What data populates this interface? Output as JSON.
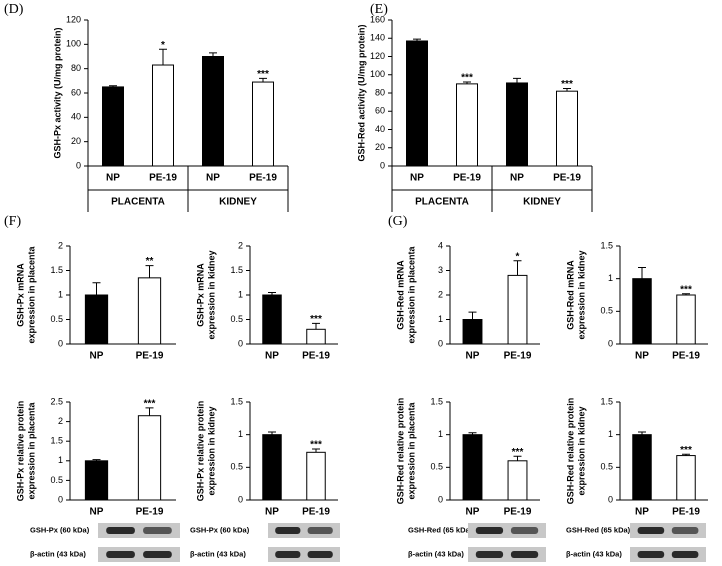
{
  "chart_data": [
    {
      "type": "bar",
      "panel": "(D)",
      "ylabel": [
        "GSH-Px activity (U/mg protein)"
      ],
      "categories": [
        "NP",
        "PE-19",
        "NP",
        "PE-19"
      ],
      "groups": [
        "PLACENTA",
        "KIDNEY"
      ],
      "values": [
        65,
        83,
        90,
        69
      ],
      "errors": [
        1,
        13,
        3,
        3
      ],
      "colors": [
        "#000000",
        "#ffffff",
        "#000000",
        "#ffffff"
      ],
      "annotations": [
        {
          "category": 1,
          "text": "*"
        },
        {
          "category": 3,
          "text": "***"
        }
      ],
      "ylim": [
        0,
        120
      ],
      "yticks": [
        0,
        20,
        40,
        60,
        80,
        100,
        120
      ]
    },
    {
      "type": "bar",
      "panel": "(E)",
      "ylabel": [
        "GSH-Red activity (U/mg protein)"
      ],
      "categories": [
        "NP",
        "PE-19",
        "NP",
        "PE-19"
      ],
      "groups": [
        "PLACENTA",
        "KIDNEY"
      ],
      "values": [
        137,
        90,
        91,
        82
      ],
      "errors": [
        2,
        2,
        5,
        3
      ],
      "colors": [
        "#000000",
        "#ffffff",
        "#000000",
        "#ffffff"
      ],
      "annotations": [
        {
          "category": 1,
          "text": "***"
        },
        {
          "category": 3,
          "text": "***"
        }
      ],
      "ylim": [
        0,
        160
      ],
      "yticks": [
        0,
        20,
        40,
        60,
        80,
        100,
        120,
        140,
        160
      ]
    },
    {
      "type": "bar",
      "panel": "(F)",
      "ylabel": [
        "GSH-Px mRNA",
        "expression in placenta"
      ],
      "categories": [
        "NP",
        "PE-19"
      ],
      "values": [
        1,
        1.35
      ],
      "errors": [
        0.25,
        0.25
      ],
      "colors": [
        "#000000",
        "#ffffff"
      ],
      "annotations": [
        {
          "category": 1,
          "text": "**"
        }
      ],
      "ylim": [
        0,
        2
      ],
      "yticks": [
        0,
        0.5,
        1,
        1.5,
        2
      ]
    },
    {
      "type": "bar",
      "ylabel": [
        "GSH-Px mRNA",
        "expression in kidney"
      ],
      "categories": [
        "NP",
        "PE-19"
      ],
      "values": [
        1,
        0.3
      ],
      "errors": [
        0.05,
        0.12
      ],
      "colors": [
        "#000000",
        "#ffffff"
      ],
      "annotations": [
        {
          "category": 1,
          "text": "***"
        }
      ],
      "ylim": [
        0,
        2
      ],
      "yticks": [
        0,
        0.5,
        1,
        1.5,
        2
      ]
    },
    {
      "type": "bar",
      "ylabel": [
        "GSH-Px relative protein",
        "expression in placenta"
      ],
      "categories": [
        "NP",
        "PE-19"
      ],
      "values": [
        1,
        2.15
      ],
      "errors": [
        0.03,
        0.2
      ],
      "colors": [
        "#000000",
        "#ffffff"
      ],
      "annotations": [
        {
          "category": 1,
          "text": "***"
        }
      ],
      "ylim": [
        0,
        2.5
      ],
      "yticks": [
        0,
        0.5,
        1,
        1.5,
        2,
        2.5
      ],
      "blot_labels": [
        "GSH-Px (60 kDa)",
        "β-actin (43 kDa)"
      ]
    },
    {
      "type": "bar",
      "ylabel": [
        "GSH-Px relative protein",
        "expression in kidney"
      ],
      "categories": [
        "NP",
        "PE-19"
      ],
      "values": [
        1,
        0.73
      ],
      "errors": [
        0.04,
        0.05
      ],
      "colors": [
        "#000000",
        "#ffffff"
      ],
      "annotations": [
        {
          "category": 1,
          "text": "***"
        }
      ],
      "ylim": [
        0,
        1.5
      ],
      "yticks": [
        0,
        0.5,
        1,
        1.5
      ],
      "blot_labels": [
        "GSH-Px (60 kDa)",
        "β-actin (43 kDa)"
      ]
    },
    {
      "type": "bar",
      "panel": "(G)",
      "ylabel": [
        "GSH-Red mRNA",
        "expression in placenta"
      ],
      "categories": [
        "NP",
        "PE-19"
      ],
      "values": [
        1,
        2.8
      ],
      "errors": [
        0.3,
        0.6
      ],
      "colors": [
        "#000000",
        "#ffffff"
      ],
      "annotations": [
        {
          "category": 1,
          "text": "*"
        }
      ],
      "ylim": [
        0,
        4
      ],
      "yticks": [
        0,
        1,
        2,
        3,
        4
      ]
    },
    {
      "type": "bar",
      "ylabel": [
        "GSH-Red mRNA",
        "expression in kidney"
      ],
      "categories": [
        "NP",
        "PE-19"
      ],
      "values": [
        1,
        0.75
      ],
      "errors": [
        0.17,
        0.02
      ],
      "colors": [
        "#000000",
        "#ffffff"
      ],
      "annotations": [
        {
          "category": 1,
          "text": "***"
        }
      ],
      "ylim": [
        0,
        1.5
      ],
      "yticks": [
        0,
        0.5,
        1,
        1.5
      ]
    },
    {
      "type": "bar",
      "ylabel": [
        "GSH-Red relative protein",
        "expression in placenta"
      ],
      "categories": [
        "NP",
        "PE-19"
      ],
      "values": [
        1,
        0.6
      ],
      "errors": [
        0.03,
        0.07
      ],
      "colors": [
        "#000000",
        "#ffffff"
      ],
      "annotations": [
        {
          "category": 1,
          "text": "***"
        }
      ],
      "ylim": [
        0,
        1.5
      ],
      "yticks": [
        0,
        0.5,
        1,
        1.5
      ],
      "blot_labels": [
        "GSH-Red (65 kDa)",
        "β-actin (43 kDa)"
      ]
    },
    {
      "type": "bar",
      "ylabel": [
        "GSH-Red relative protein",
        "expression in kidney"
      ],
      "categories": [
        "NP",
        "PE-19"
      ],
      "values": [
        1,
        0.68
      ],
      "errors": [
        0.04,
        0.02
      ],
      "colors": [
        "#000000",
        "#ffffff"
      ],
      "annotations": [
        {
          "category": 1,
          "text": "***"
        }
      ],
      "ylim": [
        0,
        1.5
      ],
      "yticks": [
        0,
        0.5,
        1,
        1.5
      ],
      "blot_labels": [
        "GSH-Red (65 kDa)",
        "β-actin (43 kDa)"
      ]
    }
  ]
}
